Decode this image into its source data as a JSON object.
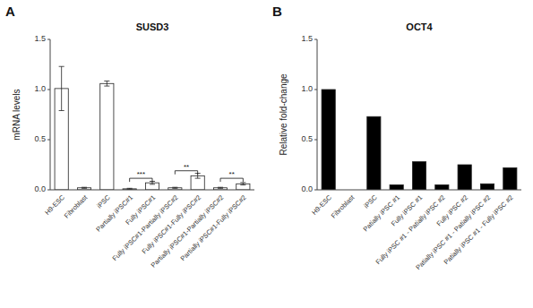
{
  "chart_data": [
    {
      "type": "bar",
      "title": "SUSD3",
      "ylabel": "mRNA levels",
      "categories": [
        "H9-ESC",
        "Fibroblast",
        "iPSC",
        "Partially iPSC#1",
        "Fully iPSC#1",
        "Fully iPSC#1-Partially iPSC#2",
        "Fully iPSC#1-Fully iPSC#2",
        "Partially iPSC#1-Partially iPSC#2",
        "Partially iPSC#1-Fully iPSC#2"
      ],
      "values": [
        1.01,
        0.02,
        1.06,
        0.01,
        0.07,
        0.02,
        0.14,
        0.02,
        0.06
      ],
      "errors": [
        0.22,
        0.005,
        0.025,
        0.005,
        0.015,
        0.005,
        0.025,
        0.005,
        0.012
      ],
      "color": "white",
      "ylim": [
        0,
        1.5
      ],
      "yticks": [
        {
          "value": 0,
          "label": "0.0"
        },
        0.5,
        {
          "value": 1,
          "label": "1.0"
        },
        1.5
      ],
      "grid": false,
      "annotations": [
        {
          "text": "A"
        },
        {
          "text": "***",
          "between": [
            "Partially iPSC#1",
            "Fully iPSC#1"
          ],
          "y": 0.115
        },
        {
          "text": "**",
          "between": [
            "Fully iPSC#1-Partially iPSC#2",
            "Fully iPSC#1-Fully iPSC#2"
          ],
          "y": 0.19
        },
        {
          "text": "**",
          "between": [
            "Partially iPSC#1-Partially iPSC#2",
            "Partially iPSC#1-Fully iPSC#2"
          ],
          "y": 0.115
        }
      ]
    },
    {
      "type": "bar",
      "title": "OCT4",
      "ylabel": "Relative fold-change",
      "categories": [
        "H9-ESC",
        "Fibroblast",
        "iPSC",
        "Patially iPSC #1",
        "Fully iPSC #1",
        "Fully iPSC #1 - Patially iPSC #2",
        "Fully iPSC #2",
        "Patially iPSC #1 - Patially iPSC #2",
        "Patially iPSC #1 - Fully iPSC #2"
      ],
      "values": [
        1.0,
        0.0,
        0.73,
        0.05,
        0.28,
        0.05,
        0.25,
        0.06,
        0.22
      ],
      "color": "black",
      "ylim": [
        0,
        1.5
      ],
      "yticks": [
        {
          "value": 0,
          "label": "0.0"
        },
        0.5,
        {
          "value": 1,
          "label": "1.0"
        },
        1.5
      ],
      "grid": false,
      "annotations": [
        {
          "text": "B"
        }
      ]
    }
  ]
}
